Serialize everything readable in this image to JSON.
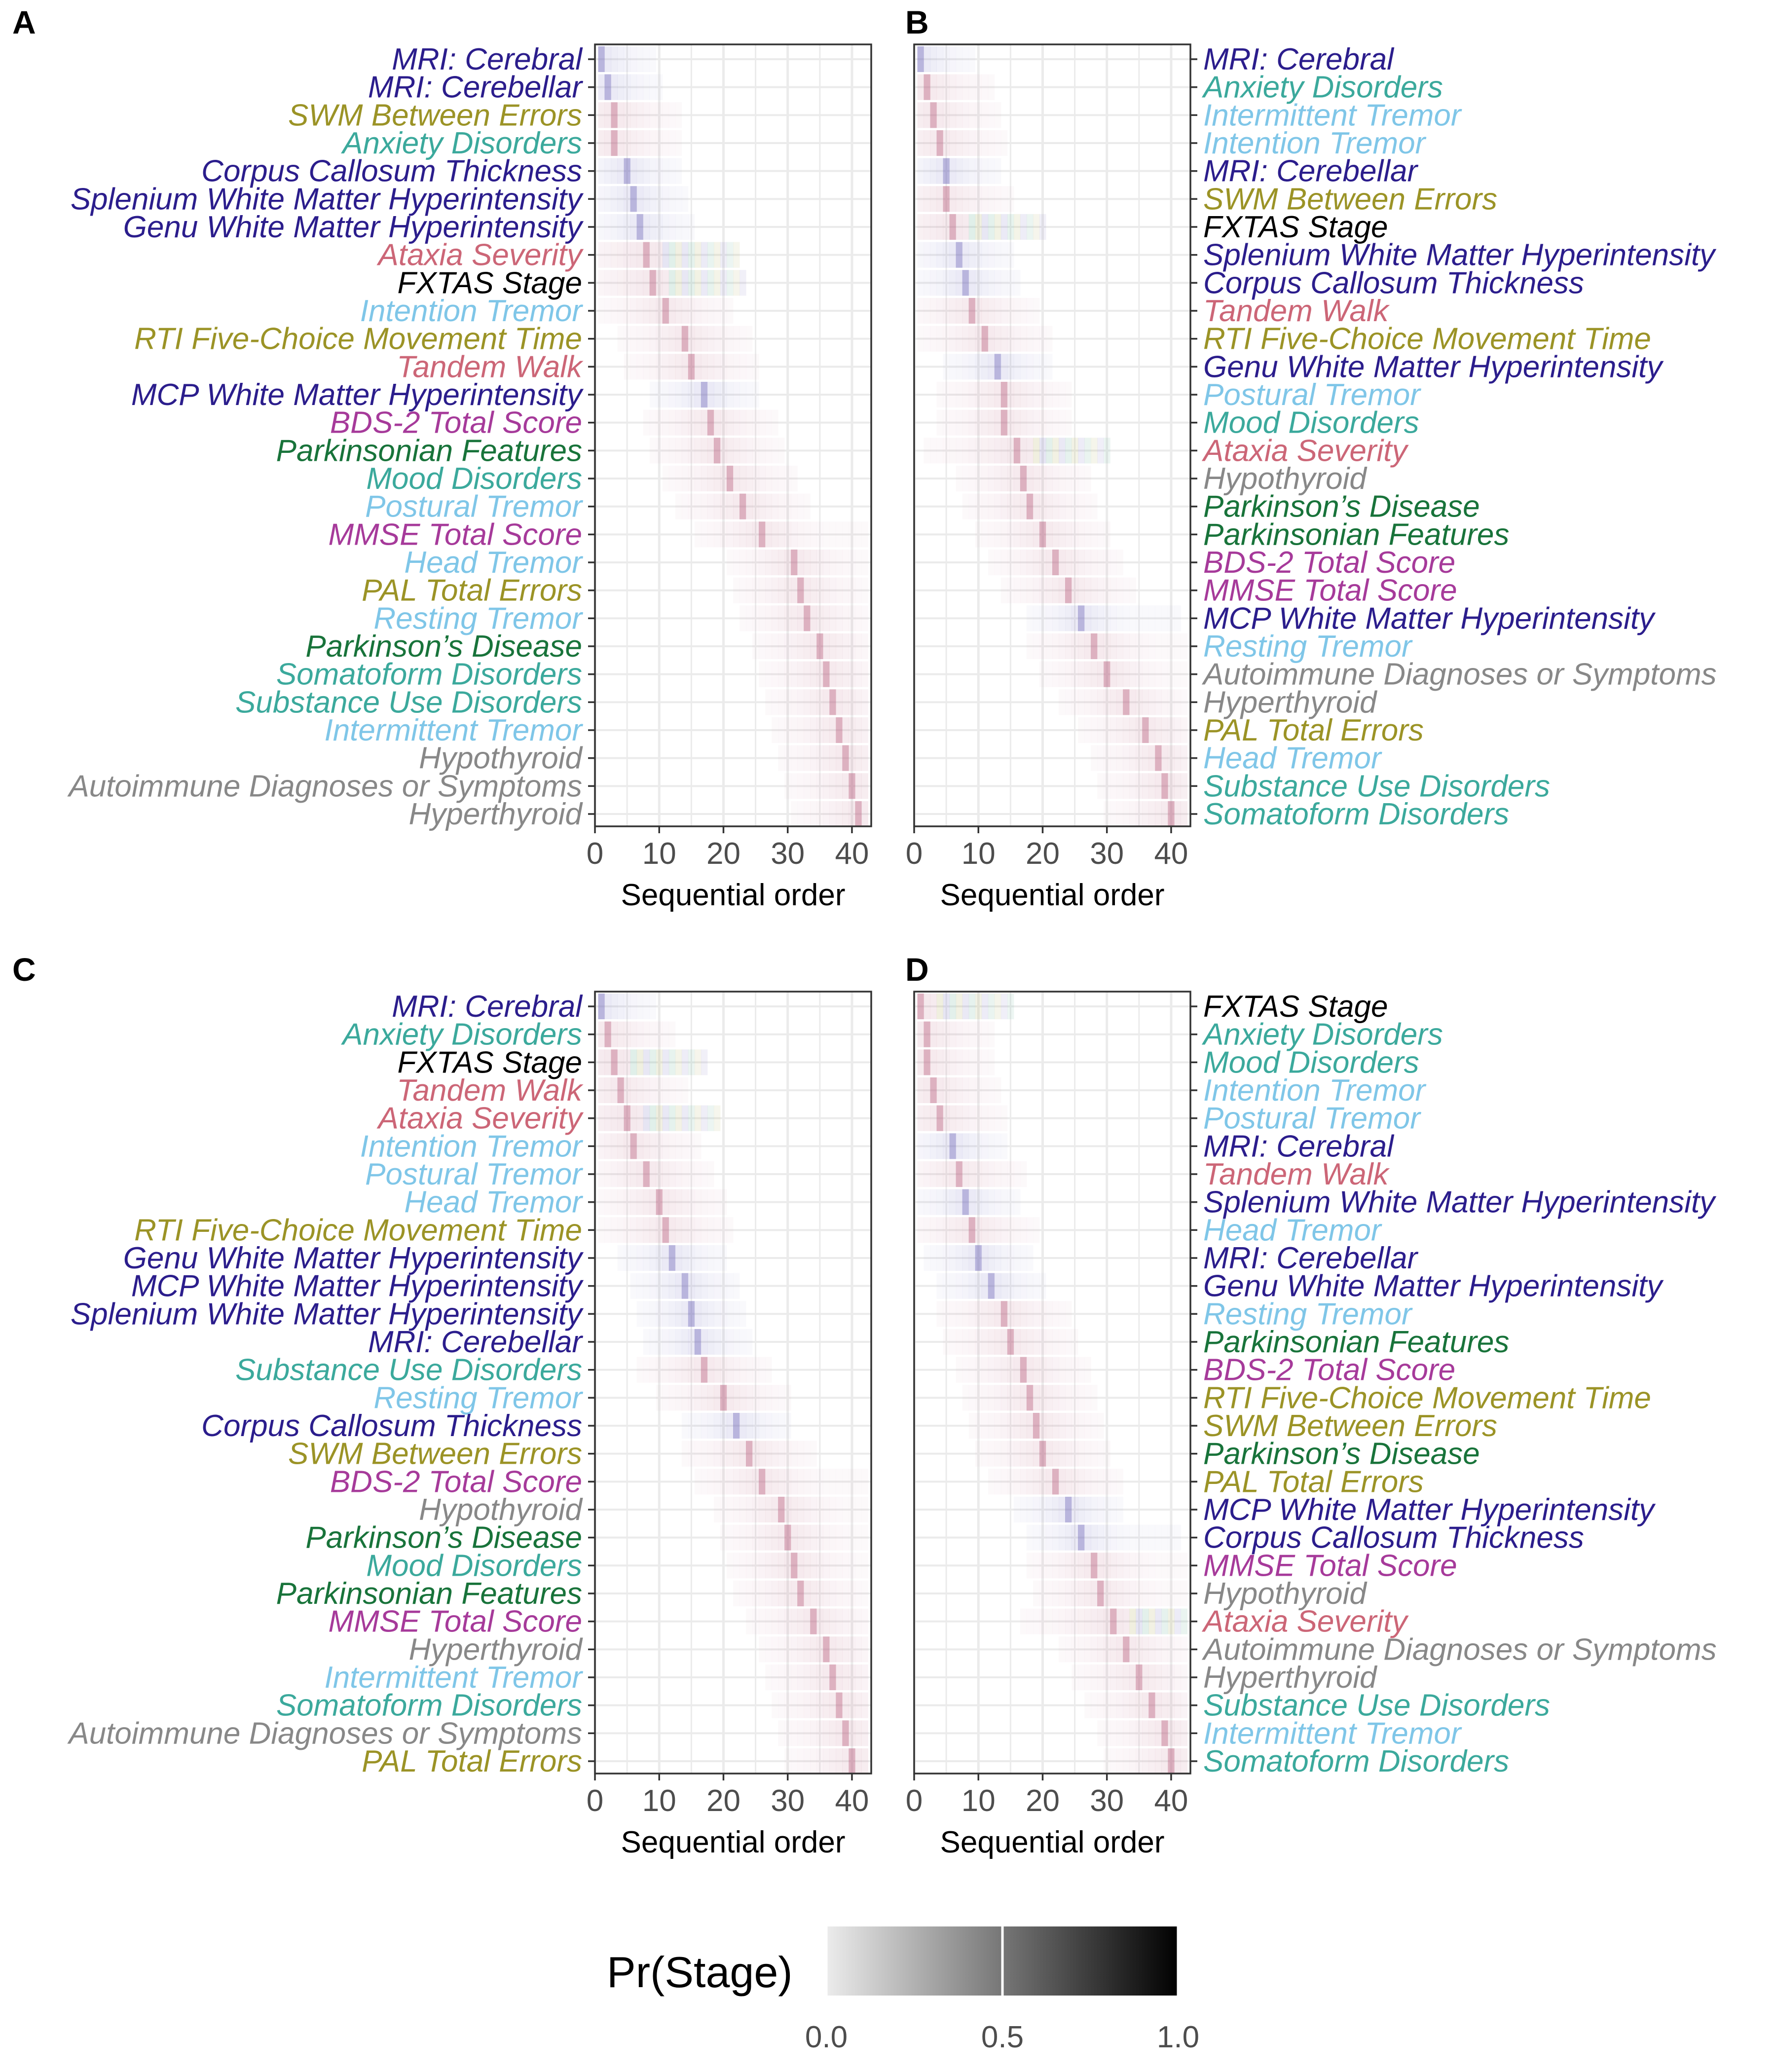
{
  "colors": {
    "MRI": "#2b1d8c",
    "Cognitive": "#9b9326",
    "Psychiatric": "#3ba99c",
    "Tremor": "#7fc6e8",
    "Ataxia": "#cc6677",
    "Stage": "#000000",
    "Parkinson": "#18733a",
    "Score": "#a63a9a",
    "Other": "#888888"
  },
  "legend": {
    "title": "Pr(Stage)",
    "ticks": [
      "0.0",
      "0.5",
      "1.0"
    ],
    "gradient": [
      "#ececec",
      "#000000"
    ]
  },
  "chart_data": [
    {
      "type": "heatmap",
      "panel": "A",
      "xlabel": "Sequential order",
      "xlim": [
        0,
        43
      ],
      "xticks": [
        "0",
        "10",
        "20",
        "30",
        "40"
      ],
      "ylabels_side": "left",
      "features": [
        {
          "name": "MRI: Cerebral",
          "group": "MRI",
          "stage": 1
        },
        {
          "name": "MRI: Cerebellar",
          "group": "MRI",
          "stage": 2
        },
        {
          "name": "SWM Between Errors",
          "group": "Cognitive",
          "stage": 3
        },
        {
          "name": "Anxiety Disorders",
          "group": "Psychiatric",
          "stage": 3
        },
        {
          "name": "Corpus Callosum Thickness",
          "group": "MRI",
          "stage": 5
        },
        {
          "name": "Splenium White Matter Hyperintensity",
          "group": "MRI",
          "stage": 6
        },
        {
          "name": "Genu White Matter Hyperintensity",
          "group": "MRI",
          "stage": 7
        },
        {
          "name": "Ataxia Severity",
          "group": "Ataxia",
          "stage": 8
        },
        {
          "name": "FXTAS Stage",
          "group": "Stage",
          "stage": 9
        },
        {
          "name": "Intention Tremor",
          "group": "Tremor",
          "stage": 11
        },
        {
          "name": "RTI Five-Choice  Movement Time",
          "group": "Cognitive",
          "stage": 14
        },
        {
          "name": "Tandem Walk",
          "group": "Ataxia",
          "stage": 15
        },
        {
          "name": "MCP White Matter Hyperintensity",
          "group": "MRI",
          "stage": 17
        },
        {
          "name": "BDS-2  Total Score",
          "group": "Score",
          "stage": 18
        },
        {
          "name": "Parkinsonian Features",
          "group": "Parkinson",
          "stage": 19
        },
        {
          "name": "Mood Disorders",
          "group": "Psychiatric",
          "stage": 21
        },
        {
          "name": "Postural Tremor",
          "group": "Tremor",
          "stage": 23
        },
        {
          "name": "MMSE Total Score",
          "group": "Score",
          "stage": 26
        },
        {
          "name": "Head Tremor",
          "group": "Tremor",
          "stage": 31
        },
        {
          "name": "PAL Total Errors",
          "group": "Cognitive",
          "stage": 32
        },
        {
          "name": "Resting Tremor",
          "group": "Tremor",
          "stage": 33
        },
        {
          "name": "Parkinson’s Disease",
          "group": "Parkinson",
          "stage": 35
        },
        {
          "name": "Somatoform Disorders",
          "group": "Psychiatric",
          "stage": 36
        },
        {
          "name": "Substance Use Disorders",
          "group": "Psychiatric",
          "stage": 37
        },
        {
          "name": "Intermittent Tremor",
          "group": "Tremor",
          "stage": 38
        },
        {
          "name": "Hypothyroid",
          "group": "Other",
          "stage": 39
        },
        {
          "name": "Autoimmune Diagnoses or Symptoms",
          "group": "Other",
          "stage": 40
        },
        {
          "name": "Hyperthyroid",
          "group": "Other",
          "stage": 41
        }
      ]
    },
    {
      "type": "heatmap",
      "panel": "B",
      "xlabel": "Sequential order",
      "xlim": [
        0,
        43
      ],
      "xticks": [
        "0",
        "10",
        "20",
        "30",
        "40"
      ],
      "ylabels_side": "right",
      "features": [
        {
          "name": "MRI: Cerebral",
          "group": "MRI",
          "stage": 1
        },
        {
          "name": "Anxiety Disorders",
          "group": "Psychiatric",
          "stage": 2
        },
        {
          "name": "Intermittent Tremor",
          "group": "Tremor",
          "stage": 3
        },
        {
          "name": "Intention Tremor",
          "group": "Tremor",
          "stage": 4
        },
        {
          "name": "MRI: Cerebellar",
          "group": "MRI",
          "stage": 5
        },
        {
          "name": "SWM Between Errors",
          "group": "Cognitive",
          "stage": 5
        },
        {
          "name": "FXTAS Stage",
          "group": "Stage",
          "stage": 6
        },
        {
          "name": "Splenium White Matter Hyperintensity",
          "group": "MRI",
          "stage": 7
        },
        {
          "name": "Corpus Callosum Thickness",
          "group": "MRI",
          "stage": 8
        },
        {
          "name": "Tandem Walk",
          "group": "Ataxia",
          "stage": 9
        },
        {
          "name": "RTI Five-Choice  Movement Time",
          "group": "Cognitive",
          "stage": 11
        },
        {
          "name": "Genu White Matter Hyperintensity",
          "group": "MRI",
          "stage": 13
        },
        {
          "name": "Postural Tremor",
          "group": "Tremor",
          "stage": 14
        },
        {
          "name": "Mood Disorders",
          "group": "Psychiatric",
          "stage": 14
        },
        {
          "name": "Ataxia Severity",
          "group": "Ataxia",
          "stage": 16
        },
        {
          "name": "Hypothyroid",
          "group": "Other",
          "stage": 17
        },
        {
          "name": "Parkinson’s Disease",
          "group": "Parkinson",
          "stage": 18
        },
        {
          "name": "Parkinsonian Features",
          "group": "Parkinson",
          "stage": 20
        },
        {
          "name": "BDS-2  Total Score",
          "group": "Score",
          "stage": 22
        },
        {
          "name": "MMSE Total Score",
          "group": "Score",
          "stage": 24
        },
        {
          "name": "MCP White Matter Hyperintensity",
          "group": "MRI",
          "stage": 26
        },
        {
          "name": "Resting Tremor",
          "group": "Tremor",
          "stage": 28
        },
        {
          "name": "Autoimmune Diagnoses or Symptoms",
          "group": "Other",
          "stage": 30
        },
        {
          "name": "Hyperthyroid",
          "group": "Other",
          "stage": 33
        },
        {
          "name": "PAL Total Errors",
          "group": "Cognitive",
          "stage": 36
        },
        {
          "name": "Head Tremor",
          "group": "Tremor",
          "stage": 38
        },
        {
          "name": "Substance Use Disorders",
          "group": "Psychiatric",
          "stage": 39
        },
        {
          "name": "Somatoform Disorders",
          "group": "Psychiatric",
          "stage": 40
        }
      ]
    },
    {
      "type": "heatmap",
      "panel": "C",
      "xlabel": "Sequential order",
      "xlim": [
        0,
        43
      ],
      "xticks": [
        "0",
        "10",
        "20",
        "30",
        "40"
      ],
      "ylabels_side": "left",
      "features": [
        {
          "name": "MRI: Cerebral",
          "group": "MRI",
          "stage": 1
        },
        {
          "name": "Anxiety Disorders",
          "group": "Psychiatric",
          "stage": 2
        },
        {
          "name": "FXTAS Stage",
          "group": "Stage",
          "stage": 3
        },
        {
          "name": "Tandem Walk",
          "group": "Ataxia",
          "stage": 4
        },
        {
          "name": "Ataxia Severity",
          "group": "Ataxia",
          "stage": 5
        },
        {
          "name": "Intention Tremor",
          "group": "Tremor",
          "stage": 6
        },
        {
          "name": "Postural Tremor",
          "group": "Tremor",
          "stage": 8
        },
        {
          "name": "Head Tremor",
          "group": "Tremor",
          "stage": 10
        },
        {
          "name": "RTI Five-Choice  Movement Time",
          "group": "Cognitive",
          "stage": 11
        },
        {
          "name": "Genu White Matter Hyperintensity",
          "group": "MRI",
          "stage": 12
        },
        {
          "name": "MCP White Matter Hyperintensity",
          "group": "MRI",
          "stage": 14
        },
        {
          "name": "Splenium White Matter Hyperintensity",
          "group": "MRI",
          "stage": 15
        },
        {
          "name": "MRI: Cerebellar",
          "group": "MRI",
          "stage": 16
        },
        {
          "name": "Substance Use Disorders",
          "group": "Psychiatric",
          "stage": 17
        },
        {
          "name": "Resting Tremor",
          "group": "Tremor",
          "stage": 20
        },
        {
          "name": "Corpus Callosum Thickness",
          "group": "MRI",
          "stage": 22
        },
        {
          "name": "SWM Between Errors",
          "group": "Cognitive",
          "stage": 24
        },
        {
          "name": "BDS-2  Total Score",
          "group": "Score",
          "stage": 26
        },
        {
          "name": "Hypothyroid",
          "group": "Other",
          "stage": 29
        },
        {
          "name": "Parkinson’s Disease",
          "group": "Parkinson",
          "stage": 30
        },
        {
          "name": "Mood Disorders",
          "group": "Psychiatric",
          "stage": 31
        },
        {
          "name": "Parkinsonian Features",
          "group": "Parkinson",
          "stage": 32
        },
        {
          "name": "MMSE Total Score",
          "group": "Score",
          "stage": 34
        },
        {
          "name": "Hyperthyroid",
          "group": "Other",
          "stage": 36
        },
        {
          "name": "Intermittent Tremor",
          "group": "Tremor",
          "stage": 37
        },
        {
          "name": "Somatoform Disorders",
          "group": "Psychiatric",
          "stage": 38
        },
        {
          "name": "Autoimmune Diagnoses or Symptoms",
          "group": "Other",
          "stage": 39
        },
        {
          "name": "PAL Total Errors",
          "group": "Cognitive",
          "stage": 40
        }
      ]
    },
    {
      "type": "heatmap",
      "panel": "D",
      "xlabel": "Sequential order",
      "xlim": [
        0,
        43
      ],
      "xticks": [
        "0",
        "10",
        "20",
        "30",
        "40"
      ],
      "ylabels_side": "right",
      "features": [
        {
          "name": "FXTAS Stage",
          "group": "Stage",
          "stage": 1
        },
        {
          "name": "Anxiety Disorders",
          "group": "Psychiatric",
          "stage": 2
        },
        {
          "name": "Mood Disorders",
          "group": "Psychiatric",
          "stage": 2
        },
        {
          "name": "Intention Tremor",
          "group": "Tremor",
          "stage": 3
        },
        {
          "name": "Postural Tremor",
          "group": "Tremor",
          "stage": 4
        },
        {
          "name": "MRI: Cerebral",
          "group": "MRI",
          "stage": 6
        },
        {
          "name": "Tandem Walk",
          "group": "Ataxia",
          "stage": 7
        },
        {
          "name": "Splenium White Matter Hyperintensity",
          "group": "MRI",
          "stage": 8
        },
        {
          "name": "Head Tremor",
          "group": "Tremor",
          "stage": 9
        },
        {
          "name": "MRI: Cerebellar",
          "group": "MRI",
          "stage": 10
        },
        {
          "name": "Genu White Matter Hyperintensity",
          "group": "MRI",
          "stage": 12
        },
        {
          "name": "Resting Tremor",
          "group": "Tremor",
          "stage": 14
        },
        {
          "name": "Parkinsonian Features",
          "group": "Parkinson",
          "stage": 15
        },
        {
          "name": "BDS-2  Total Score",
          "group": "Score",
          "stage": 17
        },
        {
          "name": "RTI Five-Choice  Movement Time",
          "group": "Cognitive",
          "stage": 18
        },
        {
          "name": "SWM Between Errors",
          "group": "Cognitive",
          "stage": 19
        },
        {
          "name": "Parkinson’s Disease",
          "group": "Parkinson",
          "stage": 20
        },
        {
          "name": "PAL Total Errors",
          "group": "Cognitive",
          "stage": 22
        },
        {
          "name": "MCP White Matter Hyperintensity",
          "group": "MRI",
          "stage": 24
        },
        {
          "name": "Corpus Callosum Thickness",
          "group": "MRI",
          "stage": 26
        },
        {
          "name": "MMSE Total Score",
          "group": "Score",
          "stage": 28
        },
        {
          "name": "Hypothyroid",
          "group": "Other",
          "stage": 29
        },
        {
          "name": "Ataxia Severity",
          "group": "Ataxia",
          "stage": 31
        },
        {
          "name": "Autoimmune Diagnoses or Symptoms",
          "group": "Other",
          "stage": 33
        },
        {
          "name": "Hyperthyroid",
          "group": "Other",
          "stage": 35
        },
        {
          "name": "Substance Use Disorders",
          "group": "Psychiatric",
          "stage": 37
        },
        {
          "name": "Intermittent Tremor",
          "group": "Tremor",
          "stage": 39
        },
        {
          "name": "Somatoform Disorders",
          "group": "Psychiatric",
          "stage": 40
        }
      ]
    }
  ]
}
